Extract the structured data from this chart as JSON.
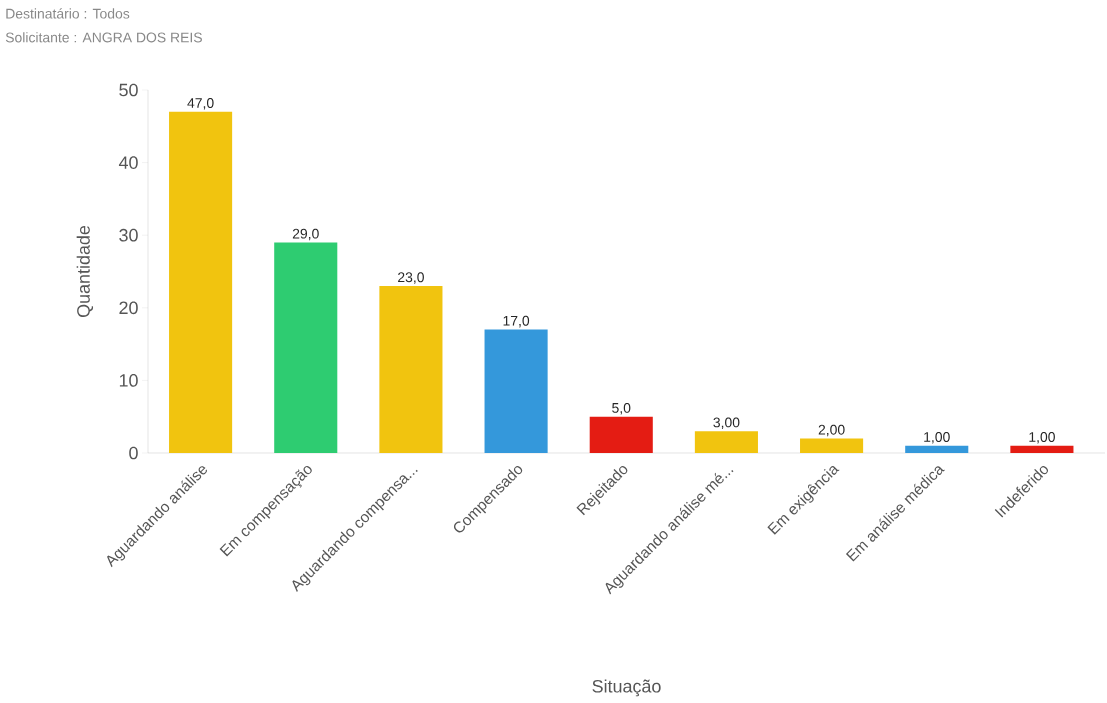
{
  "chart_data": {
    "type": "bar",
    "annotations": [
      "Destinatário : Todos",
      "Solicitante : ANGRA DOS REIS"
    ],
    "xlabel": "Situação",
    "ylabel": "Quantidade",
    "categories": [
      "Aguardando análise",
      "Em compensação",
      "Aguardando compensa...",
      "Compensado",
      "Rejeitado",
      "Aguardando análise mé...",
      "Em exigência",
      "Em análise médica",
      "Indeferido"
    ],
    "values": [
      47,
      29,
      23,
      17,
      5,
      3,
      2,
      1,
      1
    ],
    "value_labels": [
      "47,0",
      "29,0",
      "23,0",
      "17,0",
      "5,0",
      "3,00",
      "2,00",
      "1,00",
      "1,00"
    ],
    "colors": [
      "#f1c40f",
      "#2ecc71",
      "#f1c40f",
      "#3498db",
      "#e41c13",
      "#f1c40f",
      "#f1c40f",
      "#3498db",
      "#e41c13"
    ],
    "ylim": [
      0,
      50
    ],
    "yticks": [
      0,
      10,
      20,
      30,
      40,
      50
    ]
  }
}
